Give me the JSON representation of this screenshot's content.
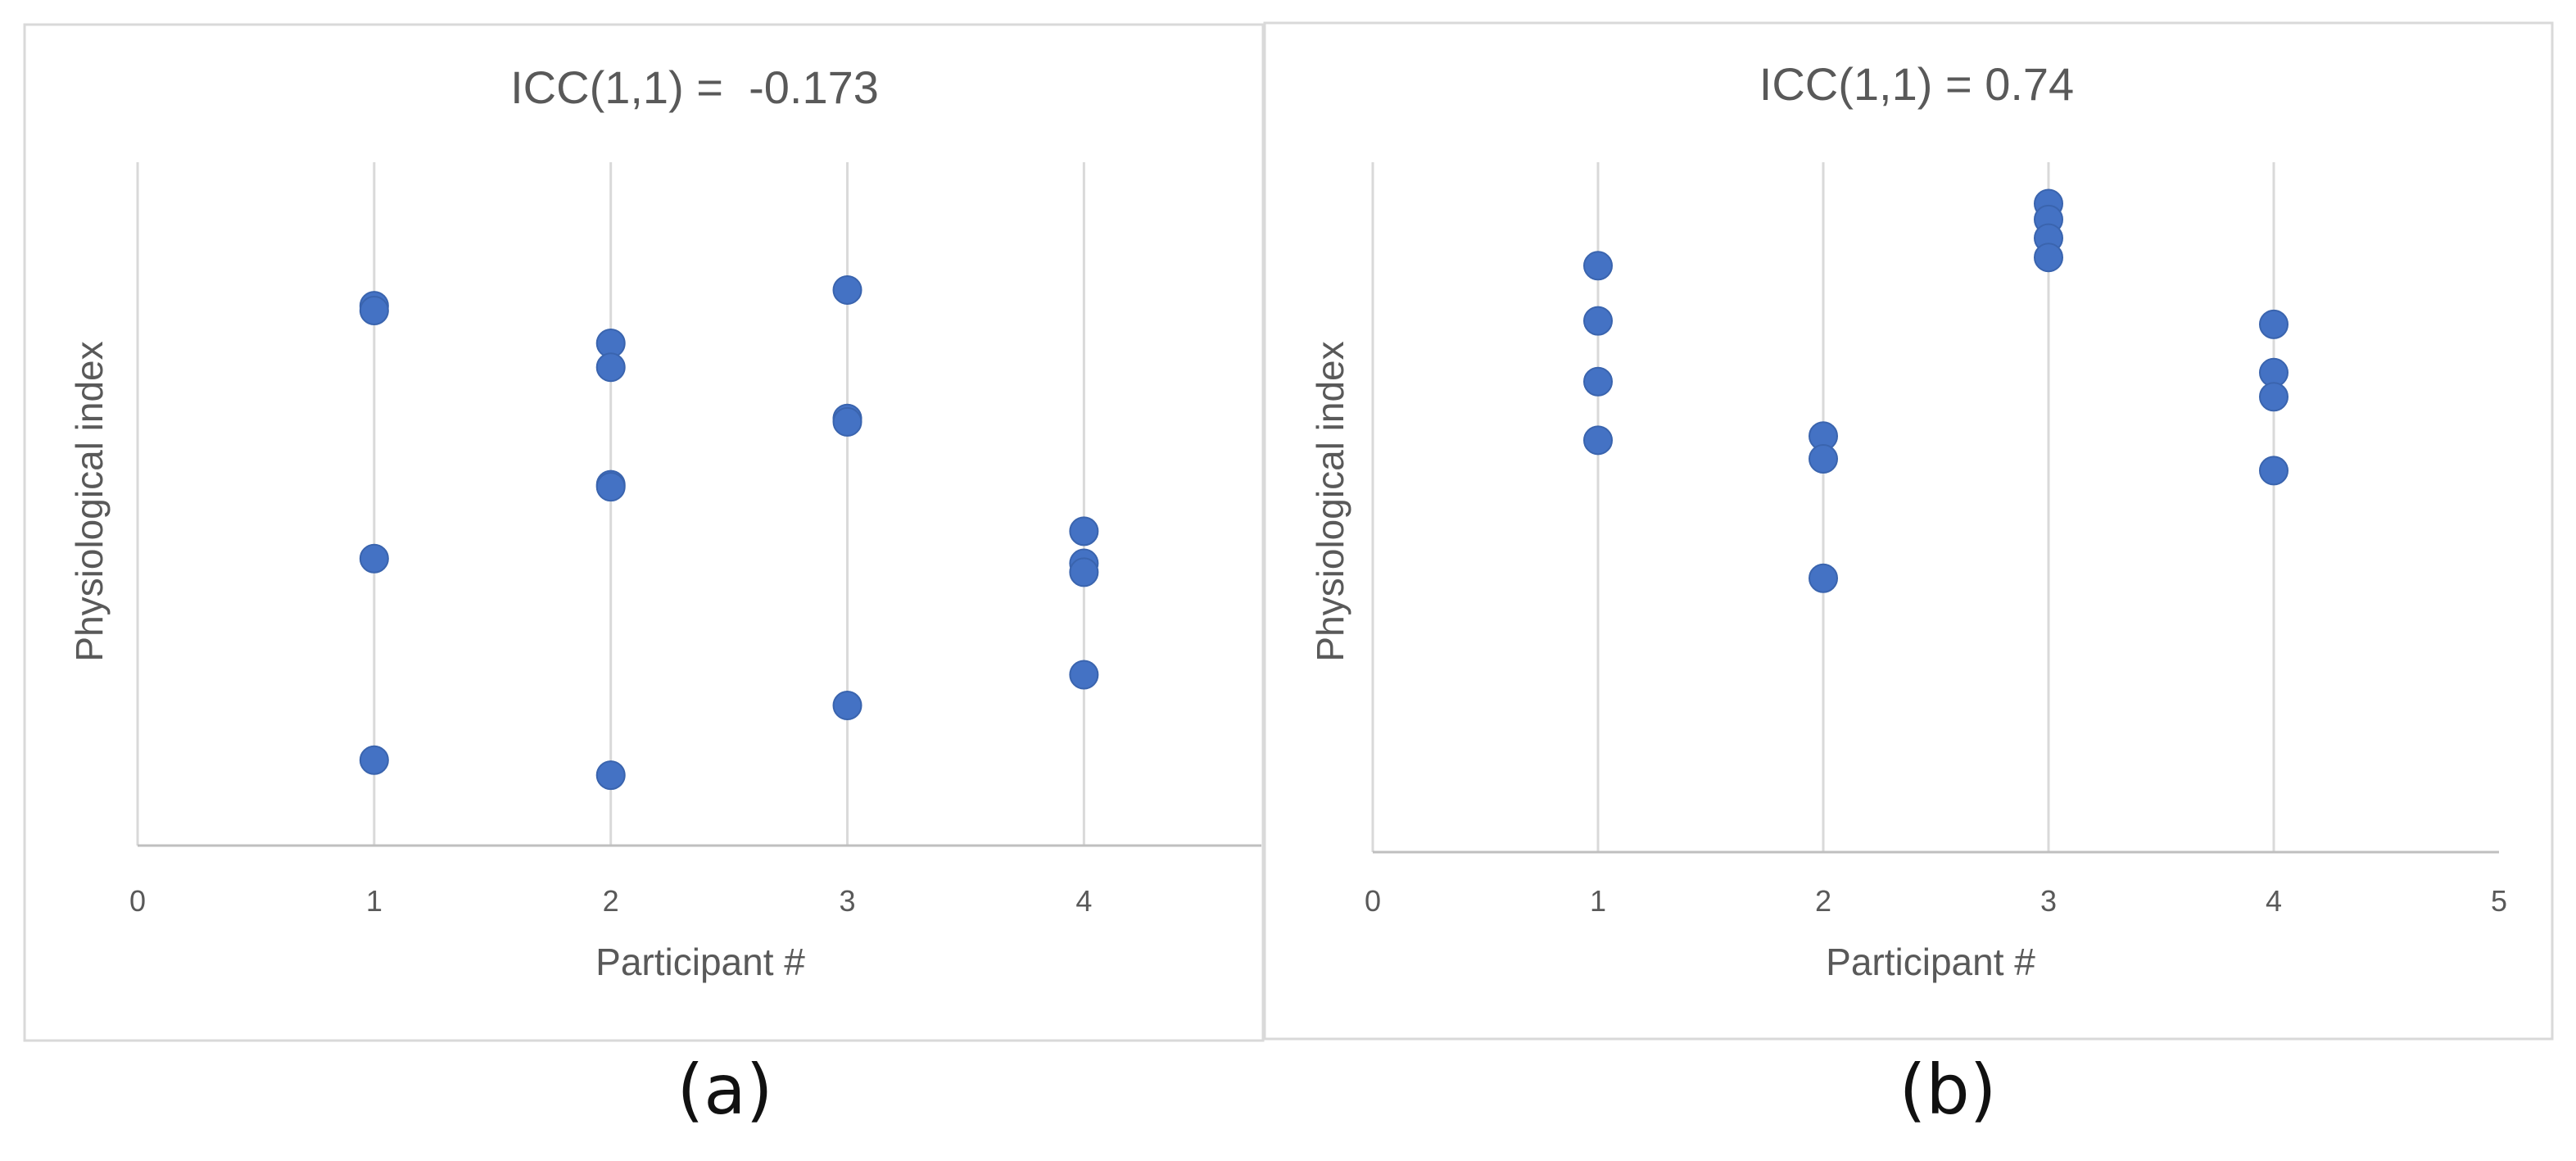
{
  "figure": {
    "captions": [
      "(a)",
      "(b)"
    ]
  },
  "colors": {
    "marker": "#4472C4",
    "gridline": "#D9D9D9",
    "axis": "#BFBFBF",
    "frame": "#D9D9D9",
    "text": "#595959"
  },
  "chart_data": [
    {
      "type": "scatter",
      "panel": "(a)",
      "title": "ICC(1,1) =  -0.173",
      "xlabel": "Participant #",
      "ylabel": "Physiological index",
      "xlim": [
        0,
        4.75
      ],
      "ylim": [
        0,
        10
      ],
      "x_ticks": [
        "0",
        "1",
        "2",
        "3",
        "4"
      ],
      "y_ticks_shown": false,
      "vertical_gridlines": [
        1,
        2,
        3,
        4
      ],
      "series": [
        {
          "name": "Physiological index",
          "points": [
            {
              "x": 1,
              "y": 7.9
            },
            {
              "x": 1,
              "y": 7.83
            },
            {
              "x": 1,
              "y": 4.2
            },
            {
              "x": 1,
              "y": 1.25
            },
            {
              "x": 2,
              "y": 7.35
            },
            {
              "x": 2,
              "y": 7.0
            },
            {
              "x": 2,
              "y": 5.28
            },
            {
              "x": 2,
              "y": 5.25
            },
            {
              "x": 2,
              "y": 1.03
            },
            {
              "x": 3,
              "y": 8.13
            },
            {
              "x": 3,
              "y": 6.25
            },
            {
              "x": 3,
              "y": 6.2
            },
            {
              "x": 3,
              "y": 2.05
            },
            {
              "x": 4,
              "y": 4.6
            },
            {
              "x": 4,
              "y": 4.13
            },
            {
              "x": 4,
              "y": 4.0
            },
            {
              "x": 4,
              "y": 2.5
            }
          ]
        }
      ]
    },
    {
      "type": "scatter",
      "panel": "(b)",
      "title": "ICC(1,1) = 0.74",
      "xlabel": "Participant #",
      "ylabel": "Physiological index",
      "xlim": [
        0,
        5
      ],
      "ylim": [
        0,
        10
      ],
      "x_ticks": [
        "0",
        "1",
        "2",
        "3",
        "4",
        "5"
      ],
      "y_ticks_shown": false,
      "vertical_gridlines": [
        1,
        2,
        3,
        4
      ],
      "series": [
        {
          "name": "Physiological index",
          "points": [
            {
              "x": 1,
              "y": 8.5
            },
            {
              "x": 1,
              "y": 7.7
            },
            {
              "x": 1,
              "y": 6.82
            },
            {
              "x": 1,
              "y": 5.97
            },
            {
              "x": 2,
              "y": 6.03
            },
            {
              "x": 2,
              "y": 5.7
            },
            {
              "x": 2,
              "y": 3.97
            },
            {
              "x": 3,
              "y": 9.4
            },
            {
              "x": 3,
              "y": 9.17
            },
            {
              "x": 3,
              "y": 8.9
            },
            {
              "x": 3,
              "y": 8.62
            },
            {
              "x": 4,
              "y": 7.65
            },
            {
              "x": 4,
              "y": 6.95
            },
            {
              "x": 4,
              "y": 6.6
            },
            {
              "x": 4,
              "y": 5.53
            }
          ]
        }
      ]
    }
  ]
}
